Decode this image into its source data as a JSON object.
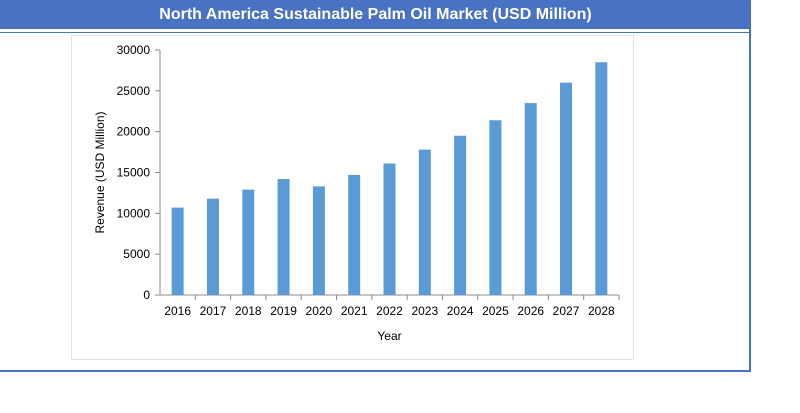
{
  "header": {
    "title": "North America Sustainable Palm Oil Market (USD Million)"
  },
  "colors": {
    "accent": "#4a72c4",
    "bar": "#5b9bd5"
  },
  "chart_data": {
    "type": "bar",
    "title": "North America Sustainable Palm Oil Market (USD Million)",
    "xlabel": "Year",
    "ylabel": "Revenue (USD Million)",
    "ylim": [
      0,
      30000
    ],
    "yticks": [
      0,
      5000,
      10000,
      15000,
      20000,
      25000,
      30000
    ],
    "categories": [
      "2016",
      "2017",
      "2018",
      "2019",
      "2020",
      "2021",
      "2022",
      "2023",
      "2024",
      "2025",
      "2026",
      "2027",
      "2028"
    ],
    "values": [
      10700,
      11800,
      12900,
      14200,
      13300,
      14700,
      16100,
      17800,
      19500,
      21400,
      23500,
      26000,
      28500
    ],
    "grid": false,
    "legend": "none"
  }
}
